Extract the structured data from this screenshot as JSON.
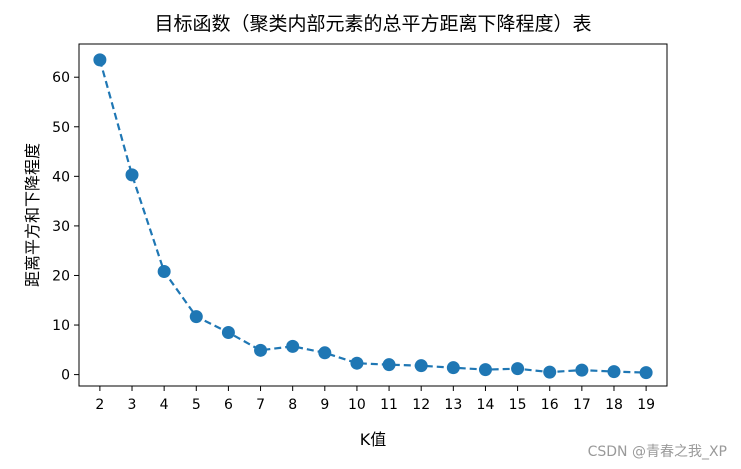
{
  "chart_data": {
    "type": "line",
    "title": "目标函数（聚类内部元素的总平方距离下降程度）表",
    "xlabel": "K值",
    "ylabel": "距离平方和下降程度",
    "x": [
      2,
      3,
      4,
      5,
      6,
      7,
      8,
      9,
      10,
      11,
      12,
      13,
      14,
      15,
      16,
      17,
      18,
      19
    ],
    "y": [
      63.5,
      40.3,
      20.8,
      11.7,
      8.5,
      4.9,
      5.7,
      4.4,
      2.3,
      2.0,
      1.8,
      1.4,
      1.0,
      1.2,
      0.5,
      0.9,
      0.6,
      0.4
    ],
    "xticks": [
      2,
      3,
      4,
      5,
      6,
      7,
      8,
      9,
      10,
      11,
      12,
      13,
      14,
      15,
      16,
      17,
      18,
      19
    ],
    "yticks": [
      0,
      10,
      20,
      30,
      40,
      50,
      60
    ],
    "xlim": [
      1.35,
      19.65
    ],
    "ylim": [
      -2.3,
      66.7
    ],
    "line_style": "dashed",
    "marker": "circle",
    "color": "#1f77b4",
    "grid": false
  },
  "watermark": "CSDN @青春之我_XP"
}
